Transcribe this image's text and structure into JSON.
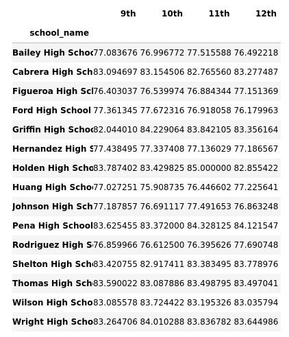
{
  "table": {
    "index_name": "school_name",
    "columns": [
      "9th",
      "10th",
      "11th",
      "12th"
    ],
    "rows": [
      {
        "school": "Bailey High School",
        "values": [
          "77.083676",
          "76.996772",
          "77.515588",
          "76.492218"
        ]
      },
      {
        "school": "Cabrera High School",
        "values": [
          "83.094697",
          "83.154506",
          "82.765560",
          "83.277487"
        ]
      },
      {
        "school": "Figueroa High School",
        "values": [
          "76.403037",
          "76.539974",
          "76.884344",
          "77.151369"
        ]
      },
      {
        "school": "Ford High School",
        "values": [
          "77.361345",
          "77.672316",
          "76.918058",
          "76.179963"
        ]
      },
      {
        "school": "Griffin High School",
        "values": [
          "82.044010",
          "84.229064",
          "83.842105",
          "83.356164"
        ]
      },
      {
        "school": "Hernandez High School",
        "values": [
          "77.438495",
          "77.337408",
          "77.136029",
          "77.186567"
        ]
      },
      {
        "school": "Holden High School",
        "values": [
          "83.787402",
          "83.429825",
          "85.000000",
          "82.855422"
        ]
      },
      {
        "school": "Huang High School",
        "values": [
          "77.027251",
          "75.908735",
          "76.446602",
          "77.225641"
        ]
      },
      {
        "school": "Johnson High School",
        "values": [
          "77.187857",
          "76.691117",
          "77.491653",
          "76.863248"
        ]
      },
      {
        "school": "Pena High School",
        "values": [
          "83.625455",
          "83.372000",
          "84.328125",
          "84.121547"
        ]
      },
      {
        "school": "Rodriguez High School",
        "values": [
          "76.859966",
          "76.612500",
          "76.395626",
          "77.690748"
        ]
      },
      {
        "school": "Shelton High School",
        "values": [
          "83.420755",
          "82.917411",
          "83.383495",
          "83.778976"
        ]
      },
      {
        "school": "Thomas High School",
        "values": [
          "83.590022",
          "83.087886",
          "83.498795",
          "83.497041"
        ]
      },
      {
        "school": "Wilson High School",
        "values": [
          "83.085578",
          "83.724422",
          "83.195326",
          "83.035794"
        ]
      },
      {
        "school": "Wright High School",
        "values": [
          "83.264706",
          "84.010288",
          "83.836782",
          "83.644986"
        ]
      }
    ]
  },
  "colors": {
    "stripe": "#f5f5f5",
    "header_rule": "#bdbdbd",
    "text": "#000000"
  }
}
